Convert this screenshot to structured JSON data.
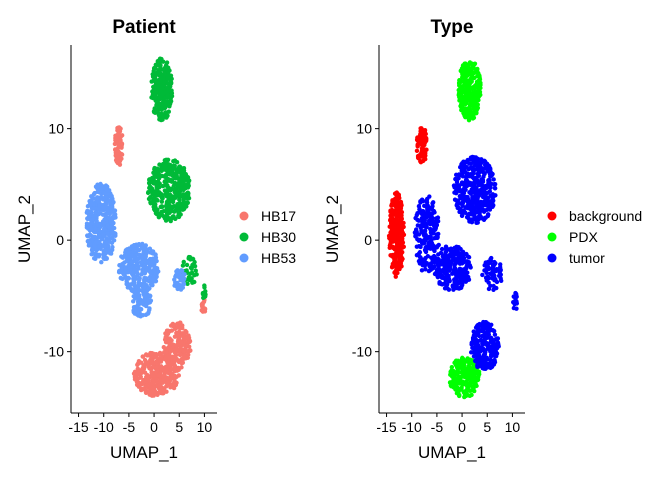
{
  "chart_data": [
    {
      "type": "scatter",
      "title": "Patient",
      "xlabel": "UMAP_1",
      "ylabel": "UMAP_2",
      "xlim": [
        -16.5,
        12.5
      ],
      "ylim": [
        -15.5,
        17.5
      ],
      "xticks": [
        -15,
        -10,
        -5,
        0,
        5,
        10
      ],
      "yticks": [
        -10,
        0,
        10
      ],
      "xtick_labels": [
        "-15",
        "-10",
        "-5",
        "0",
        "5",
        "10"
      ],
      "ytick_labels": [
        "-10",
        "0",
        "10"
      ],
      "legend_position": "right",
      "series": [
        {
          "name": "HB17",
          "color": "#F8766D",
          "regions": [
            {
              "cx": -7.0,
              "cy": 8.5,
              "rx": 0.8,
              "ry": 1.8,
              "n": 70
            },
            {
              "cx": 0.5,
              "cy": -12.0,
              "rx": 4.5,
              "ry": 2.0,
              "n": 300
            },
            {
              "cx": 4.5,
              "cy": -9.5,
              "rx": 2.8,
              "ry": 2.2,
              "n": 180
            },
            {
              "cx": 9.8,
              "cy": -6.0,
              "rx": 0.4,
              "ry": 0.8,
              "n": 15
            }
          ]
        },
        {
          "name": "HB30",
          "color": "#00BA38",
          "regions": [
            {
              "cx": 1.5,
              "cy": 13.5,
              "rx": 2.2,
              "ry": 2.8,
              "n": 250
            },
            {
              "cx": 3.0,
              "cy": 4.5,
              "rx": 4.2,
              "ry": 2.8,
              "n": 350
            },
            {
              "cx": 7.0,
              "cy": -2.8,
              "rx": 1.5,
              "ry": 1.3,
              "n": 40
            },
            {
              "cx": 10.0,
              "cy": -4.8,
              "rx": 0.3,
              "ry": 0.8,
              "n": 12
            }
          ]
        },
        {
          "name": "HB53",
          "color": "#619CFF",
          "regions": [
            {
              "cx": -10.5,
              "cy": 1.5,
              "rx": 3.0,
              "ry": 3.6,
              "n": 380
            },
            {
              "cx": -3.0,
              "cy": -2.5,
              "rx": 4.0,
              "ry": 2.2,
              "n": 300
            },
            {
              "cx": -2.5,
              "cy": -5.5,
              "rx": 2.0,
              "ry": 1.5,
              "n": 90
            },
            {
              "cx": 5.0,
              "cy": -3.5,
              "rx": 1.2,
              "ry": 1.0,
              "n": 40
            }
          ]
        }
      ]
    },
    {
      "type": "scatter",
      "title": "Type",
      "xlabel": "UMAP_1",
      "ylabel": "UMAP_2",
      "xlim": [
        -16.5,
        12.5
      ],
      "ylim": [
        -15.5,
        17.5
      ],
      "xticks": [
        -15,
        -10,
        -5,
        0,
        5,
        10
      ],
      "yticks": [
        -10,
        0,
        10
      ],
      "xtick_labels": [
        "-15",
        "-10",
        "-5",
        "0",
        "5",
        "10"
      ],
      "ytick_labels": [
        "-10",
        "0",
        "10"
      ],
      "legend_position": "right",
      "series": [
        {
          "name": "background",
          "color": "#FF0000",
          "regions": [
            {
              "cx": -13.0,
              "cy": 0.5,
              "rx": 1.5,
              "ry": 3.8,
              "n": 280
            },
            {
              "cx": -8.0,
              "cy": 8.5,
              "rx": 1.0,
              "ry": 1.8,
              "n": 70
            }
          ]
        },
        {
          "name": "PDX",
          "color": "#00FF00",
          "regions": [
            {
              "cx": 1.5,
              "cy": 13.5,
              "rx": 2.2,
              "ry": 2.8,
              "n": 260
            },
            {
              "cx": 0.5,
              "cy": -12.3,
              "rx": 3.0,
              "ry": 1.8,
              "n": 220
            }
          ]
        },
        {
          "name": "tumor",
          "color": "#0000FF",
          "regions": [
            {
              "cx": 2.5,
              "cy": 4.5,
              "rx": 4.2,
              "ry": 3.0,
              "n": 360
            },
            {
              "cx": -7.0,
              "cy": 0.5,
              "rx": 2.5,
              "ry": 3.5,
              "n": 200
            },
            {
              "cx": -2.0,
              "cy": -2.5,
              "rx": 4.0,
              "ry": 2.0,
              "n": 250
            },
            {
              "cx": 4.5,
              "cy": -9.5,
              "rx": 2.8,
              "ry": 2.2,
              "n": 220
            },
            {
              "cx": 6.0,
              "cy": -3.0,
              "rx": 2.0,
              "ry": 1.5,
              "n": 60
            },
            {
              "cx": 10.5,
              "cy": -5.5,
              "rx": 0.4,
              "ry": 1.2,
              "n": 15
            }
          ]
        }
      ]
    }
  ]
}
